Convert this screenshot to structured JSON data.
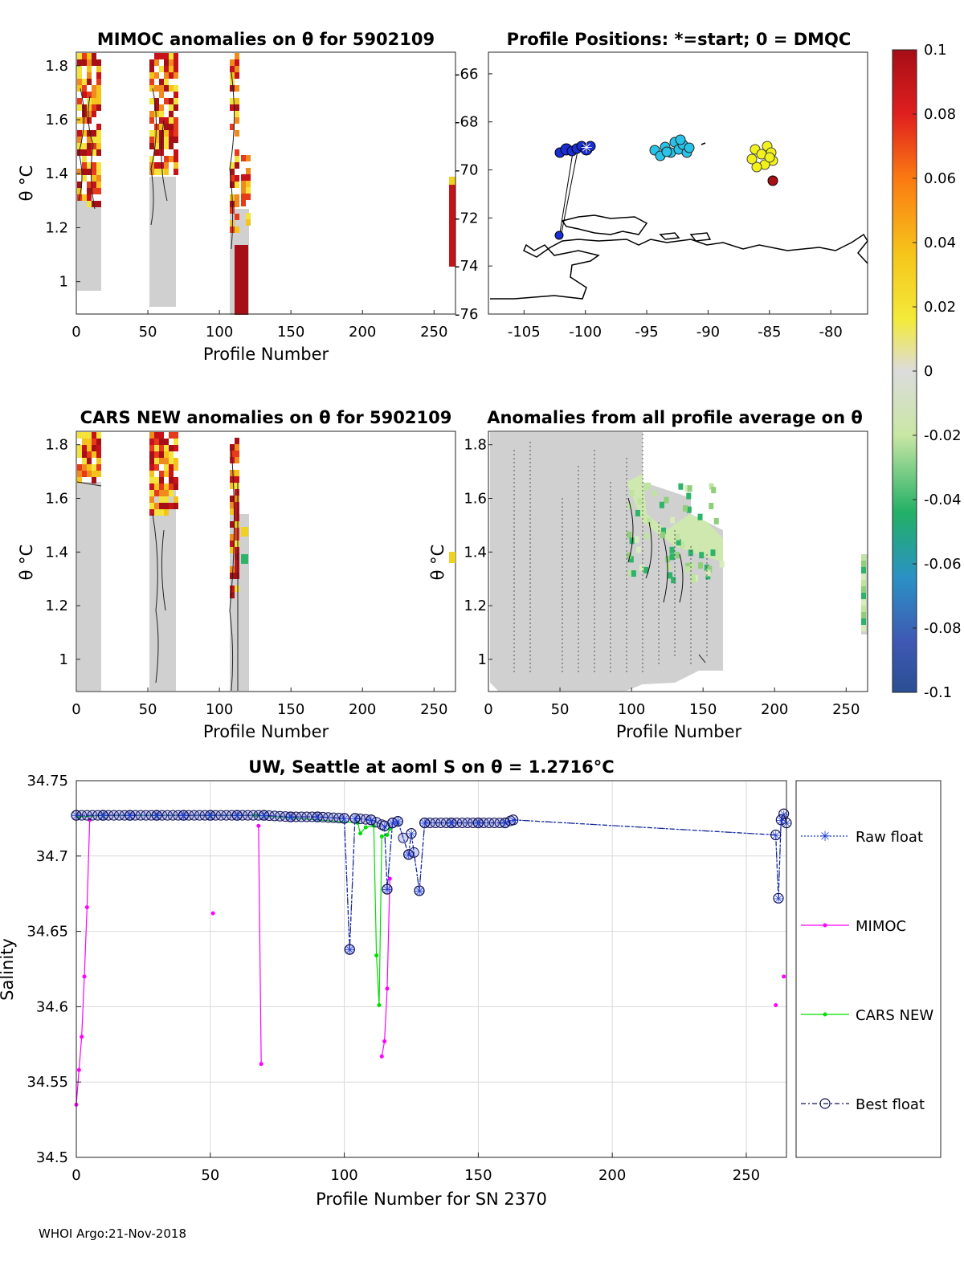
{
  "figure_footer": "WHOI Argo:21-Nov-2018",
  "colors": {
    "raw_float": "#1a3ad6",
    "mimoc": "#ff00ff",
    "cars_new": "#00dd00",
    "best_float": "#101050",
    "grid": "#d9d9d9",
    "coast": "#000000"
  },
  "colorbar": {
    "ticks": [
      "0.1",
      "0.08",
      "0.06",
      "0.04",
      "0.02",
      "0",
      "-0.02",
      "-0.04",
      "-0.06",
      "-0.08",
      "-0.1"
    ],
    "range": [
      -0.1,
      0.1
    ]
  },
  "panels": {
    "mimoc": {
      "title": "MIMOC anomalies on θ  for 5902109",
      "xlabel": "Profile Number",
      "ylabel": "θ °C",
      "xticks": [
        "0",
        "50",
        "100",
        "150",
        "200",
        "250"
      ],
      "yticks": [
        "1.8",
        "1.6",
        "1.4",
        "1.2",
        "1"
      ],
      "xlim": [
        0,
        265
      ],
      "ylim": [
        0.88,
        1.85
      ]
    },
    "positions": {
      "title": "Profile Positions: *=start; 0 = DMQC",
      "xticks": [
        "-105",
        "-100",
        "-95",
        "-90",
        "-85",
        "-80"
      ],
      "yticks": [
        "-66",
        "-68",
        "-70",
        "-72",
        "-74",
        "-76"
      ],
      "xlim": [
        -107.9,
        -77.0
      ],
      "ylim": [
        -76,
        -65.1
      ]
    },
    "cars": {
      "title": "CARS NEW anomalies on θ for 5902109",
      "xlabel": "Profile Number",
      "ylabel": "θ °C",
      "xticks": [
        "0",
        "50",
        "100",
        "150",
        "200",
        "250"
      ],
      "yticks": [
        "1.8",
        "1.6",
        "1.4",
        "1.2",
        "1"
      ],
      "xlim": [
        0,
        265
      ],
      "ylim": [
        0.88,
        1.85
      ]
    },
    "avg": {
      "title": "Anomalies from all profile average on θ",
      "xlabel": "Profile Number",
      "ylabel": "θ °C",
      "xticks": [
        "0",
        "50",
        "100",
        "150",
        "200",
        "250"
      ],
      "yticks": [
        "1.8",
        "1.6",
        "1.4",
        "1.2",
        "1"
      ],
      "xlim": [
        0,
        265
      ],
      "ylim": [
        0.88,
        1.85
      ]
    }
  },
  "chart_data": {
    "type": "line",
    "title": "UW, Seattle at aoml S on θ = 1.2716°C",
    "xlabel": "Profile Number for SN 2370",
    "ylabel": "Salinity",
    "xlim": [
      0,
      265
    ],
    "ylim": [
      34.5,
      34.75
    ],
    "xticks": [
      "0",
      "50",
      "100",
      "150",
      "200",
      "250"
    ],
    "yticks": [
      "34.75",
      "34.7",
      "34.65",
      "34.6",
      "34.55",
      "34.5"
    ],
    "grid": true,
    "legend_position": "right, outside",
    "series": [
      {
        "name": "Raw float",
        "x": [
          0,
          10,
          20,
          30,
          40,
          50,
          60,
          70,
          80,
          90,
          100,
          102,
          104,
          110,
          115,
          116,
          118,
          120,
          124,
          125,
          128,
          130,
          140,
          150,
          160,
          163,
          261,
          262,
          263,
          264,
          265
        ],
        "y": [
          34.727,
          34.727,
          34.727,
          34.727,
          34.727,
          34.727,
          34.727,
          34.727,
          34.726,
          34.726,
          34.725,
          34.638,
          34.725,
          34.724,
          34.72,
          34.678,
          34.722,
          34.723,
          34.701,
          34.715,
          34.677,
          34.722,
          34.722,
          34.722,
          34.722,
          34.724,
          34.714,
          34.672,
          34.724,
          34.728,
          34.722
        ]
      },
      {
        "name": "MIMOC",
        "x": [
          0,
          1,
          2,
          3,
          4,
          5,
          51,
          68,
          69,
          114,
          115,
          116,
          117,
          261,
          264
        ],
        "y": [
          34.535,
          34.558,
          34.58,
          34.62,
          34.666,
          34.724,
          34.662,
          34.72,
          34.562,
          34.567,
          34.577,
          34.612,
          34.685,
          34.601,
          34.62
        ],
        "note": "Separate line segments for profile groups 0-18, 52-69 and 108-120; isolated points elsewhere."
      },
      {
        "name": "CARS NEW",
        "x": [
          1,
          10,
          30,
          50,
          67,
          105,
          106,
          108,
          111,
          112,
          113,
          114,
          116,
          117
        ],
        "y": [
          34.726,
          34.727,
          34.727,
          34.727,
          34.727,
          34.722,
          34.715,
          34.719,
          34.72,
          34.634,
          34.601,
          34.713,
          34.714,
          34.718
        ]
      },
      {
        "name": "Best float",
        "x": [
          0,
          10,
          20,
          30,
          40,
          50,
          60,
          70,
          80,
          90,
          100,
          102,
          104,
          110,
          115,
          116,
          118,
          120,
          124,
          125,
          128,
          130,
          140,
          150,
          160,
          163,
          261,
          262,
          263,
          264,
          265
        ],
        "y": [
          34.727,
          34.727,
          34.727,
          34.727,
          34.727,
          34.727,
          34.727,
          34.727,
          34.726,
          34.726,
          34.725,
          34.638,
          34.725,
          34.724,
          34.72,
          34.678,
          34.722,
          34.723,
          34.701,
          34.715,
          34.677,
          34.722,
          34.722,
          34.722,
          34.722,
          34.724,
          34.714,
          34.672,
          34.724,
          34.728,
          34.722
        ]
      }
    ]
  }
}
